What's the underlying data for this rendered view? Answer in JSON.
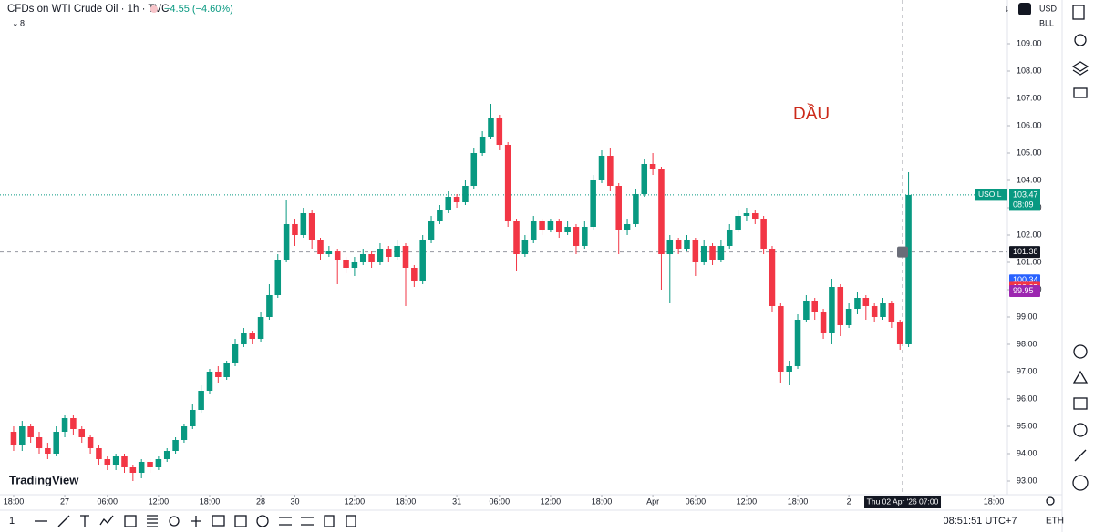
{
  "chart_data": {
    "type": "candlestick",
    "title": "CFDs on WTI Crude Oil · 1h · TVC",
    "change_label": "−4.55 (−4.60%)",
    "indicator_count": "8",
    "currency": "USD",
    "unit": "BLL",
    "annotation": "DẦU",
    "logo": "TradingView",
    "up_color": "#089981",
    "down_color": "#f23645",
    "xlim": [
      -1.6,
      116.6
    ],
    "ylim": [
      92.5,
      110.6
    ],
    "grid": false,
    "yticks": [
      {
        "value": 93,
        "label": "93.00"
      },
      {
        "value": 94,
        "label": "94.00"
      },
      {
        "value": 95,
        "label": "95.00"
      },
      {
        "value": 96,
        "label": "96.00"
      },
      {
        "value": 97,
        "label": "97.00"
      },
      {
        "value": 98,
        "label": "98.00"
      },
      {
        "value": 99,
        "label": "99.00"
      },
      {
        "value": 100,
        "label": "100.00"
      },
      {
        "value": 101,
        "label": "101.00"
      },
      {
        "value": 102,
        "label": "102.00"
      },
      {
        "value": 103,
        "label": "103.00"
      },
      {
        "value": 104,
        "label": "104.00"
      },
      {
        "value": 105,
        "label": "105.00"
      },
      {
        "value": 106,
        "label": "106.00"
      },
      {
        "value": 107,
        "label": "107.00"
      },
      {
        "value": 108,
        "label": "108.00"
      },
      {
        "value": 109,
        "label": "109.00"
      }
    ],
    "xticks": [
      {
        "value": 0,
        "label": "18:00"
      },
      {
        "value": 6,
        "label": "27"
      },
      {
        "value": 11,
        "label": "06:00"
      },
      {
        "value": 17,
        "label": "12:00"
      },
      {
        "value": 23,
        "label": "18:00"
      },
      {
        "value": 29,
        "label": "28"
      },
      {
        "value": 33,
        "label": "30"
      },
      {
        "value": 40,
        "label": "12:00"
      },
      {
        "value": 46,
        "label": "18:00"
      },
      {
        "value": 52,
        "label": "31"
      },
      {
        "value": 57,
        "label": "06:00"
      },
      {
        "value": 63,
        "label": "12:00"
      },
      {
        "value": 69,
        "label": "18:00"
      },
      {
        "value": 75,
        "label": "Apr"
      },
      {
        "value": 80,
        "label": "06:00"
      },
      {
        "value": 86,
        "label": "12:00"
      },
      {
        "value": 92,
        "label": "18:00"
      },
      {
        "value": 98,
        "label": "2"
      },
      {
        "value": 115,
        "label": "18:00"
      }
    ],
    "open": [
      94.8,
      94.3,
      95.0,
      94.6,
      94.2,
      94.0,
      94.8,
      95.3,
      94.9,
      94.6,
      94.2,
      93.8,
      93.6,
      93.9,
      93.5,
      93.3,
      93.7,
      93.5,
      93.8,
      94.1,
      94.5,
      95.0,
      95.6,
      96.3,
      97.0,
      96.8,
      97.3,
      98.0,
      98.4,
      98.2,
      99.0,
      99.8,
      101.1,
      102.4,
      102.0,
      102.8,
      101.8,
      101.3,
      101.4,
      101.1,
      100.8,
      101.0,
      101.3,
      101.0,
      101.5,
      101.2,
      101.6,
      100.8,
      100.3,
      101.8,
      102.5,
      102.9,
      103.4,
      103.2,
      103.8,
      105.0,
      105.6,
      106.3,
      105.3,
      102.5,
      101.3,
      101.8,
      102.5,
      102.2,
      102.5,
      102.1,
      102.3,
      101.6,
      102.3,
      104.0,
      104.9,
      103.8,
      102.2,
      102.4,
      103.5,
      104.6,
      104.4,
      101.3,
      101.8,
      101.5,
      101.8,
      101.0,
      101.6,
      101.1,
      101.6,
      102.2,
      102.7,
      102.8,
      102.6,
      101.5,
      99.4,
      97.0,
      97.2,
      98.9,
      99.6,
      99.2,
      98.4,
      100.1,
      98.7,
      99.3,
      99.7,
      99.4,
      99.0,
      99.5,
      98.8,
      98.0
    ],
    "high": [
      95.0,
      95.2,
      95.1,
      94.8,
      94.4,
      95.0,
      95.4,
      95.4,
      95.0,
      94.7,
      94.3,
      93.9,
      94.0,
      94.0,
      93.6,
      93.8,
      93.8,
      93.9,
      94.2,
      94.6,
      95.1,
      95.8,
      96.5,
      97.1,
      97.2,
      97.4,
      98.2,
      98.6,
      98.5,
      99.2,
      100.2,
      101.3,
      103.3,
      102.6,
      103.0,
      102.9,
      101.9,
      101.6,
      101.5,
      101.2,
      101.2,
      101.5,
      101.4,
      101.7,
      101.6,
      101.8,
      101.7,
      100.9,
      102.0,
      102.7,
      103.1,
      103.6,
      103.5,
      104.0,
      105.2,
      105.8,
      106.8,
      106.4,
      105.4,
      102.6,
      102.0,
      102.7,
      102.6,
      102.6,
      102.6,
      102.5,
      102.4,
      102.5,
      104.2,
      105.1,
      105.2,
      103.9,
      102.6,
      103.7,
      104.8,
      105.0,
      104.5,
      102.0,
      101.9,
      102.0,
      101.9,
      101.8,
      101.7,
      101.8,
      102.4,
      102.9,
      103.0,
      102.9,
      102.7,
      101.6,
      99.5,
      97.4,
      99.1,
      99.8,
      99.7,
      99.3,
      100.4,
      100.2,
      99.5,
      99.9,
      99.8,
      99.5,
      99.7,
      99.6,
      98.9,
      104.3
    ],
    "low": [
      94.1,
      94.1,
      94.4,
      94.0,
      93.8,
      93.9,
      94.6,
      94.7,
      94.4,
      94.0,
      93.6,
      93.4,
      93.4,
      93.3,
      93.0,
      93.1,
      93.3,
      93.4,
      93.7,
      94.0,
      94.4,
      94.9,
      95.5,
      96.2,
      96.6,
      96.7,
      97.2,
      97.9,
      98.0,
      98.1,
      98.9,
      99.7,
      101.0,
      101.6,
      101.9,
      101.5,
      101.1,
      101.2,
      100.2,
      100.6,
      100.5,
      100.9,
      100.8,
      100.9,
      101.0,
      101.1,
      99.4,
      100.1,
      100.2,
      101.7,
      102.4,
      102.8,
      103.0,
      103.1,
      103.7,
      104.9,
      105.5,
      105.1,
      102.3,
      100.7,
      101.2,
      101.7,
      102.0,
      102.1,
      101.9,
      102.0,
      101.3,
      101.5,
      102.2,
      103.9,
      103.6,
      101.3,
      102.0,
      102.3,
      103.4,
      104.2,
      100.0,
      99.5,
      101.3,
      101.4,
      100.5,
      100.9,
      100.9,
      101.0,
      101.5,
      102.1,
      102.5,
      102.4,
      101.3,
      99.2,
      96.6,
      96.5,
      97.1,
      98.8,
      98.9,
      98.2,
      98.0,
      98.3,
      98.6,
      99.1,
      98.9,
      98.8,
      98.9,
      98.6,
      97.8,
      97.9
    ],
    "close": [
      94.3,
      95.0,
      94.6,
      94.2,
      94.0,
      94.8,
      95.3,
      94.9,
      94.6,
      94.2,
      93.8,
      93.6,
      93.9,
      93.5,
      93.3,
      93.7,
      93.5,
      93.8,
      94.1,
      94.5,
      95.0,
      95.6,
      96.3,
      97.0,
      96.8,
      97.3,
      98.0,
      98.4,
      98.2,
      99.0,
      99.8,
      101.1,
      102.4,
      102.0,
      102.8,
      101.8,
      101.3,
      101.4,
      101.1,
      100.8,
      101.0,
      101.3,
      101.0,
      101.5,
      101.2,
      101.6,
      100.8,
      100.3,
      101.8,
      102.5,
      102.9,
      103.4,
      103.2,
      103.8,
      105.0,
      105.6,
      106.3,
      105.3,
      102.5,
      101.3,
      101.8,
      102.5,
      102.2,
      102.5,
      102.1,
      102.3,
      101.6,
      102.3,
      104.0,
      104.9,
      103.8,
      102.2,
      102.4,
      103.5,
      104.6,
      104.4,
      101.3,
      101.8,
      101.5,
      101.8,
      101.0,
      101.6,
      101.1,
      101.6,
      102.2,
      102.7,
      102.8,
      102.6,
      101.5,
      99.4,
      97.0,
      97.2,
      98.9,
      99.6,
      99.2,
      98.4,
      100.1,
      98.7,
      99.3,
      99.7,
      99.4,
      99.0,
      99.5,
      98.8,
      98.0,
      103.47
    ],
    "last_price": {
      "name": "USOIL",
      "value": 103.47,
      "label": "103.47",
      "countdown": "08:09"
    },
    "crosshair": {
      "x": 104.3,
      "price": 101.38,
      "price_label": "101.38",
      "time_label": "Thu 02 Apr '26 07:00"
    },
    "indicator_labels": [
      {
        "value": 100.34,
        "label": "100.34",
        "color": "#2962ff"
      },
      {
        "value": 100.07,
        "label": "100.07",
        "color": "#f23645"
      },
      {
        "value": 99.95,
        "label": "99.95",
        "color": "#9c27b0"
      }
    ],
    "clock": "08:51:51 UTC+7",
    "session": "ETH",
    "interval": "1"
  }
}
